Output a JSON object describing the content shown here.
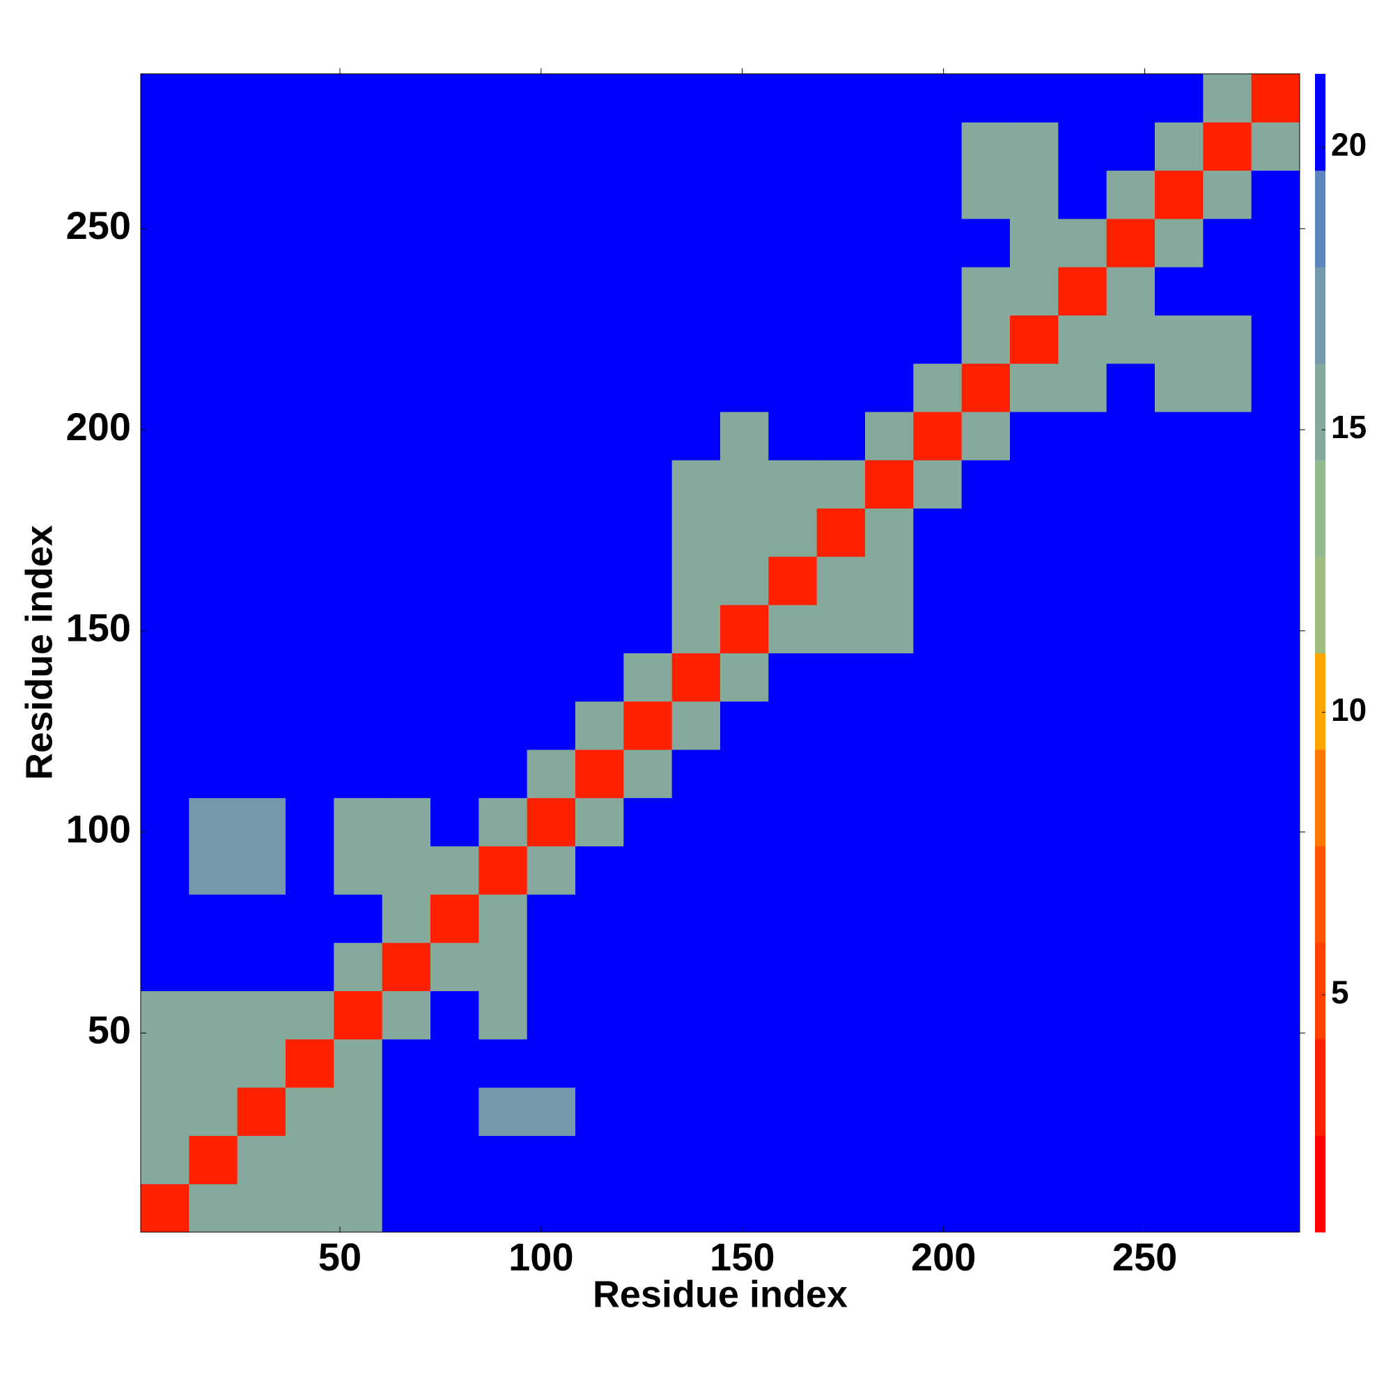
{
  "chart_data": {
    "type": "heatmap",
    "x_label": "Residue index",
    "y_label": "Residue index",
    "x": [
      6.5,
      18.5,
      30.5,
      42.5,
      54.5,
      66.5,
      78.5,
      90.5,
      102.5,
      114.5,
      126.5,
      138.5,
      150.5,
      162.5,
      174.5,
      186.5,
      198.5,
      210.5,
      222.5,
      234.5,
      246.5,
      258.5,
      270.5,
      282.5
    ],
    "y": [
      6.5,
      18.5,
      30.5,
      42.5,
      54.5,
      66.5,
      78.5,
      90.5,
      102.5,
      114.5,
      126.5,
      138.5,
      150.5,
      162.5,
      174.5,
      186.5,
      198.5,
      210.5,
      222.5,
      234.5,
      246.5,
      258.5,
      270.5,
      282.5
    ],
    "z": [
      [
        4,
        15,
        16,
        16,
        16,
        21,
        21,
        21,
        21,
        21,
        21,
        21,
        21,
        21,
        21,
        21,
        21,
        21,
        21,
        21,
        21,
        21,
        21,
        21
      ],
      [
        15,
        4,
        15,
        16,
        16,
        21,
        21,
        21,
        21,
        21,
        21,
        21,
        21,
        21,
        21,
        21,
        21,
        21,
        21,
        21,
        21,
        21,
        21,
        21
      ],
      [
        16,
        15,
        4,
        15,
        16,
        21,
        21,
        17,
        17,
        21,
        21,
        21,
        21,
        21,
        21,
        21,
        21,
        21,
        21,
        21,
        21,
        21,
        21,
        21
      ],
      [
        16,
        16,
        15,
        4,
        15,
        21,
        21,
        21,
        21,
        21,
        21,
        21,
        21,
        21,
        21,
        21,
        21,
        21,
        21,
        21,
        21,
        21,
        21,
        21
      ],
      [
        16,
        16,
        16,
        15,
        4,
        15,
        21,
        16,
        21,
        21,
        21,
        21,
        21,
        21,
        21,
        21,
        21,
        21,
        21,
        21,
        21,
        21,
        21,
        21
      ],
      [
        21,
        21,
        21,
        21,
        15,
        4,
        15,
        16,
        21,
        21,
        21,
        21,
        21,
        21,
        21,
        21,
        21,
        21,
        21,
        21,
        21,
        21,
        21,
        21
      ],
      [
        21,
        21,
        21,
        21,
        21,
        15,
        4,
        15,
        21,
        21,
        21,
        21,
        21,
        21,
        21,
        21,
        21,
        21,
        21,
        21,
        21,
        21,
        21,
        21
      ],
      [
        21,
        17,
        17,
        21,
        16,
        16,
        15,
        4,
        15,
        21,
        21,
        21,
        21,
        21,
        21,
        21,
        21,
        21,
        21,
        21,
        21,
        21,
        21,
        21
      ],
      [
        21,
        17,
        17,
        21,
        16,
        16,
        21,
        15,
        4,
        15,
        21,
        21,
        21,
        21,
        21,
        21,
        21,
        21,
        21,
        21,
        21,
        21,
        21,
        21
      ],
      [
        21,
        21,
        21,
        21,
        21,
        21,
        21,
        21,
        15,
        4,
        15,
        21,
        21,
        21,
        21,
        21,
        21,
        21,
        21,
        21,
        21,
        21,
        21,
        21
      ],
      [
        21,
        21,
        21,
        21,
        21,
        21,
        21,
        21,
        21,
        15,
        4,
        15,
        21,
        21,
        21,
        21,
        21,
        21,
        21,
        21,
        21,
        21,
        21,
        21
      ],
      [
        21,
        21,
        21,
        21,
        21,
        21,
        21,
        21,
        21,
        21,
        15,
        4,
        15,
        21,
        21,
        21,
        21,
        21,
        21,
        21,
        21,
        21,
        21,
        21
      ],
      [
        21,
        21,
        21,
        21,
        21,
        21,
        21,
        21,
        21,
        21,
        21,
        15,
        4,
        15,
        16,
        16,
        21,
        21,
        21,
        21,
        21,
        21,
        21,
        21
      ],
      [
        21,
        21,
        21,
        21,
        21,
        21,
        21,
        21,
        21,
        21,
        21,
        16,
        15,
        4,
        15,
        16,
        21,
        21,
        21,
        21,
        21,
        21,
        21,
        21
      ],
      [
        21,
        21,
        21,
        21,
        21,
        21,
        21,
        21,
        21,
        21,
        21,
        16,
        16,
        15,
        4,
        15,
        21,
        21,
        21,
        21,
        21,
        21,
        21,
        21
      ],
      [
        21,
        21,
        21,
        21,
        21,
        21,
        21,
        21,
        21,
        21,
        21,
        16,
        16,
        16,
        15,
        4,
        15,
        21,
        21,
        21,
        21,
        21,
        21,
        21
      ],
      [
        21,
        21,
        21,
        21,
        21,
        21,
        21,
        21,
        21,
        21,
        21,
        21,
        16,
        21,
        21,
        15,
        4,
        15,
        21,
        21,
        21,
        21,
        21,
        21
      ],
      [
        21,
        21,
        21,
        21,
        21,
        21,
        21,
        21,
        21,
        21,
        21,
        21,
        21,
        21,
        21,
        21,
        15,
        4,
        15,
        16,
        21,
        16,
        16,
        21
      ],
      [
        21,
        21,
        21,
        21,
        21,
        21,
        21,
        21,
        21,
        21,
        21,
        21,
        21,
        21,
        21,
        21,
        21,
        15,
        4,
        15,
        16,
        16,
        16,
        21
      ],
      [
        21,
        21,
        21,
        21,
        21,
        21,
        21,
        21,
        21,
        21,
        21,
        21,
        21,
        21,
        21,
        21,
        21,
        16,
        15,
        4,
        15,
        21,
        21,
        21
      ],
      [
        21,
        21,
        21,
        21,
        21,
        21,
        21,
        21,
        21,
        21,
        21,
        21,
        21,
        21,
        21,
        21,
        21,
        21,
        16,
        15,
        4,
        15,
        21,
        21
      ],
      [
        21,
        21,
        21,
        21,
        21,
        21,
        21,
        21,
        21,
        21,
        21,
        21,
        21,
        21,
        21,
        21,
        21,
        16,
        16,
        21,
        15,
        4,
        15,
        21
      ],
      [
        21,
        21,
        21,
        21,
        21,
        21,
        21,
        21,
        21,
        21,
        21,
        21,
        21,
        21,
        21,
        21,
        21,
        16,
        16,
        21,
        21,
        15,
        4,
        15
      ],
      [
        21,
        21,
        21,
        21,
        21,
        21,
        21,
        21,
        21,
        21,
        21,
        21,
        21,
        21,
        21,
        21,
        21,
        21,
        21,
        21,
        21,
        21,
        15,
        4
      ]
    ],
    "xlim": [
      0.5,
      288.5
    ],
    "ylim": [
      0.5,
      288.5
    ],
    "xticks": [
      50,
      100,
      150,
      200,
      250
    ],
    "yticks": [
      50,
      100,
      150,
      200,
      250
    ],
    "zlim": [
      0.8,
      21.3
    ],
    "zticks": [
      5,
      10,
      15,
      20
    ],
    "colorscale": [
      "#ff0000",
      "#ff2000",
      "#ff4000",
      "#ff5500",
      "#ff7700",
      "#ffa500",
      "#9fbf80",
      "#94b88f",
      "#85aa9c",
      "#7598ad",
      "#5f85c0",
      "#0000ff"
    ]
  }
}
